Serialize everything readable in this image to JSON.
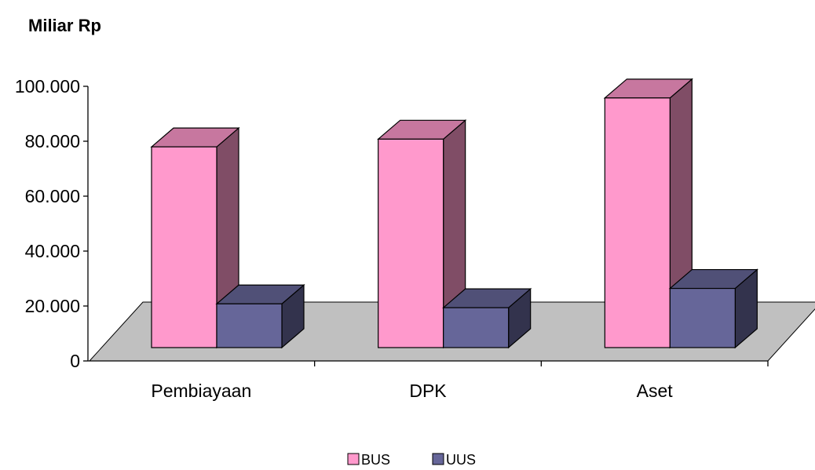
{
  "chart_data": {
    "type": "bar",
    "unit_label": "Miliar Rp",
    "categories": [
      "Pembiayaan",
      "DPK",
      "Aset"
    ],
    "series": [
      {
        "name": "BUS",
        "values": [
          78000,
          81000,
          97000
        ],
        "color": "#ff99cc"
      },
      {
        "name": "UUS",
        "values": [
          17000,
          15500,
          23000
        ],
        "color": "#666699"
      }
    ],
    "ylim": [
      0,
      100000
    ],
    "y_ticks": [
      "0",
      "20.000",
      "40.000",
      "60.000",
      "80.000",
      "100.000"
    ],
    "floor_color": "#c0c0c0",
    "legend_position": "bottom",
    "grid": false
  }
}
